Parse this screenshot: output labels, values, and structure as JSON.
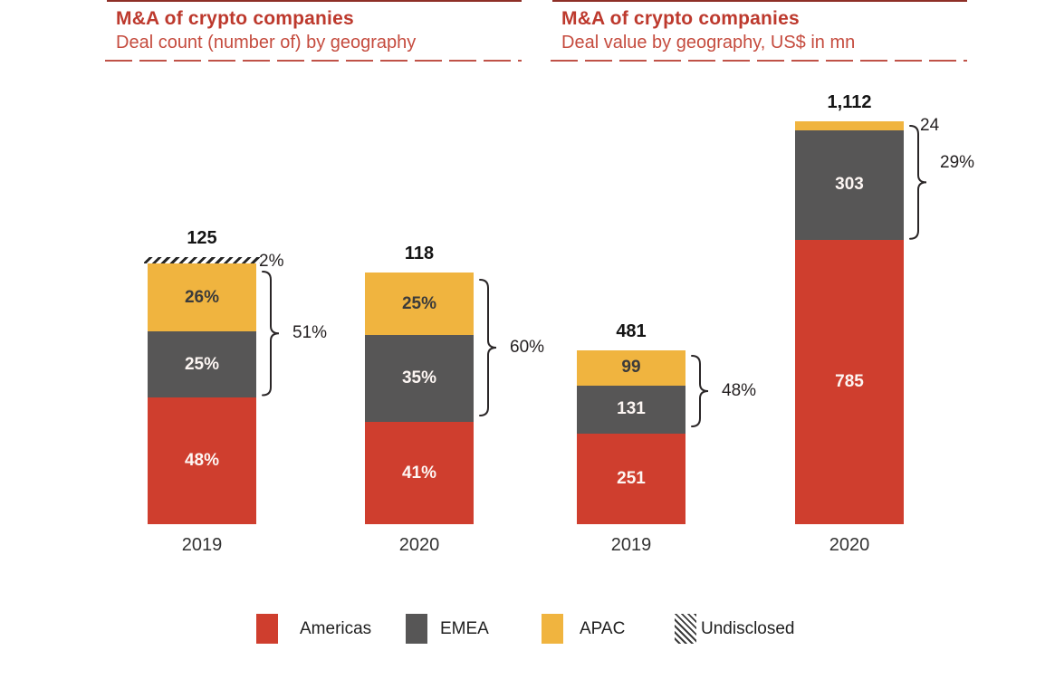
{
  "colors": {
    "americas": "#cf3e2e",
    "emea": "#575656",
    "apac": "#f0b43f",
    "title_red": "#bd392d",
    "annotation": "#231f20"
  },
  "legend": {
    "items": [
      {
        "label": "Americas",
        "swatch": "americas"
      },
      {
        "label": "EMEA",
        "swatch": "emea"
      },
      {
        "label": "APAC",
        "swatch": "apac"
      },
      {
        "label": "Undisclosed",
        "swatch": "undisclosed"
      }
    ]
  },
  "chart_data": [
    {
      "type": "bar",
      "stacked": true,
      "title": "M&A of crypto companies",
      "subtitle": "Deal count (number of) by geography",
      "unit": "percent share of deal count",
      "categories": [
        "2019",
        "2020"
      ],
      "totals": [
        125,
        118
      ],
      "total_labels": [
        "125",
        "118"
      ],
      "series": [
        {
          "name": "Americas",
          "values": [
            48,
            41
          ],
          "labels": [
            "48%",
            "41%"
          ]
        },
        {
          "name": "EMEA",
          "values": [
            25,
            35
          ],
          "labels": [
            "25%",
            "35%"
          ]
        },
        {
          "name": "APAC",
          "values": [
            26,
            25
          ],
          "labels": [
            "26%",
            "25%"
          ]
        },
        {
          "name": "Undisclosed",
          "values": [
            2,
            0
          ],
          "labels": [
            "",
            ""
          ]
        }
      ],
      "annotations": [
        {
          "category": "2019",
          "kind": "side-label",
          "text": "2%",
          "refers_to": "Undisclosed"
        },
        {
          "category": "2019",
          "kind": "bracket",
          "text": "51%",
          "span": [
            "EMEA",
            "APAC"
          ]
        },
        {
          "category": "2020",
          "kind": "bracket",
          "text": "60%",
          "span": [
            "EMEA",
            "APAC"
          ]
        }
      ],
      "grid": false,
      "legend_position": "bottom"
    },
    {
      "type": "bar",
      "stacked": true,
      "title": "M&A of crypto companies",
      "subtitle": "Deal value by geography, US$ in mn",
      "unit": "US$ mn",
      "categories": [
        "2019",
        "2020"
      ],
      "totals": [
        481,
        1112
      ],
      "total_labels": [
        "481",
        "1,112"
      ],
      "series": [
        {
          "name": "Americas",
          "values": [
            251,
            785
          ],
          "labels": [
            "251",
            "785"
          ]
        },
        {
          "name": "EMEA",
          "values": [
            131,
            303
          ],
          "labels": [
            "131",
            "303"
          ]
        },
        {
          "name": "APAC",
          "values": [
            99,
            24
          ],
          "labels": [
            "99",
            ""
          ]
        }
      ],
      "annotations": [
        {
          "category": "2019",
          "kind": "bracket",
          "text": "48%",
          "span": [
            "EMEA",
            "APAC"
          ]
        },
        {
          "category": "2020",
          "kind": "side-label",
          "text": "24",
          "refers_to": "APAC"
        },
        {
          "category": "2020",
          "kind": "bracket",
          "text": "29%",
          "span": [
            "EMEA",
            "APAC"
          ]
        }
      ],
      "grid": false,
      "legend_position": "bottom"
    }
  ]
}
